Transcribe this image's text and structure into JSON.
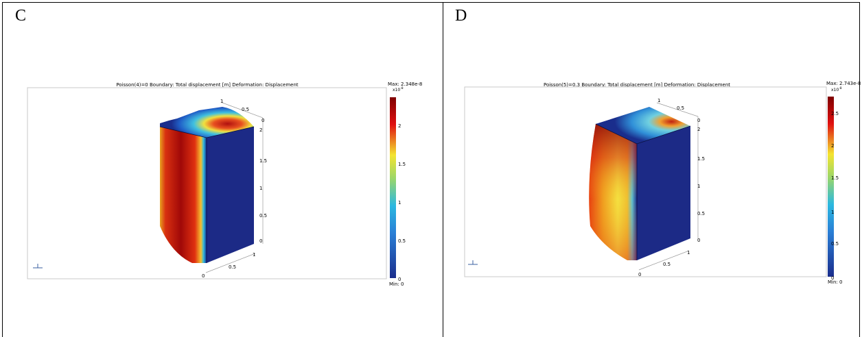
{
  "panels": [
    {
      "letter": "C",
      "title": "Poisson(4)=0   Boundary: Total displacement [m]   Deformation: Displacement",
      "max_label": "Max: 2.348e-8",
      "min_label": "Min: 0",
      "exponent": "x10",
      "exponent_power": "-8",
      "colorbar_ticks": [
        "0",
        "0.5",
        "1",
        "1.5",
        "2"
      ],
      "axis_vertical": [
        "0",
        "0.5",
        "1",
        "1.5",
        "2"
      ],
      "axis_top": [
        "1",
        "0.5",
        "0"
      ],
      "axis_bottom": [
        "0",
        "0.5",
        "1"
      ]
    },
    {
      "letter": "D",
      "title": "Poisson(5)=0.3   Boundary: Total displacement [m]   Deformation: Displacement",
      "max_label": "Max: 2.743e-8",
      "min_label": "Min: 0",
      "exponent": "x10",
      "exponent_power": "-8",
      "colorbar_ticks": [
        "0",
        "0.5",
        "1",
        "1.5",
        "2",
        "2.5"
      ],
      "axis_vertical": [
        "0",
        "0.5",
        "1",
        "1.5",
        "2"
      ],
      "axis_top": [
        "1",
        "0.5",
        "0"
      ],
      "axis_bottom": [
        "0",
        "0.5",
        "1"
      ]
    }
  ],
  "colors": {
    "jet_top": "#7f0000",
    "jet_red": "#e01010",
    "jet_yellow": "#f4e430",
    "jet_cyan": "#2bb8e0",
    "jet_blue": "#1a2d8c",
    "box_face": "#1c2a86"
  }
}
